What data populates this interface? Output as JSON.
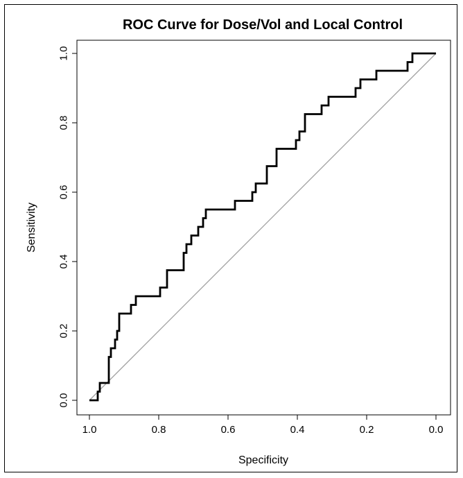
{
  "chart_data": {
    "type": "line",
    "title": "ROC Curve for Dose/Vol and Local Control",
    "xlabel": "Specificity",
    "ylabel": "Sensitivity",
    "x_reversed": true,
    "xlim": [
      1.0,
      0.0
    ],
    "ylim": [
      0.0,
      1.0
    ],
    "x_ticks": [
      "1.0",
      "0.8",
      "0.6",
      "0.4",
      "0.2",
      "0.0"
    ],
    "y_ticks": [
      "0.0",
      "0.2",
      "0.4",
      "0.6",
      "0.8",
      "1.0"
    ],
    "grid": false,
    "series": [
      {
        "style": "step",
        "color": "#000000",
        "x": [
          1.0,
          0.976,
          0.976,
          0.97,
          0.97,
          0.952,
          0.952,
          0.944,
          0.944,
          0.938,
          0.938,
          0.926,
          0.926,
          0.92,
          0.92,
          0.914,
          0.914,
          0.88,
          0.88,
          0.866,
          0.866,
          0.796,
          0.796,
          0.776,
          0.776,
          0.728,
          0.728,
          0.72,
          0.72,
          0.706,
          0.706,
          0.686,
          0.686,
          0.672,
          0.672,
          0.664,
          0.664,
          0.648,
          0.648,
          0.58,
          0.58,
          0.53,
          0.53,
          0.52,
          0.52,
          0.488,
          0.488,
          0.46,
          0.46,
          0.404,
          0.404,
          0.394,
          0.394,
          0.378,
          0.378,
          0.33,
          0.33,
          0.31,
          0.31,
          0.232,
          0.232,
          0.218,
          0.218,
          0.172,
          0.172,
          0.082,
          0.082,
          0.068,
          0.068,
          0.0
        ],
        "y": [
          0.0,
          0.0,
          0.025,
          0.025,
          0.05,
          0.05,
          0.05,
          0.05,
          0.125,
          0.125,
          0.15,
          0.15,
          0.175,
          0.175,
          0.2,
          0.2,
          0.25,
          0.25,
          0.275,
          0.275,
          0.3,
          0.3,
          0.325,
          0.325,
          0.375,
          0.375,
          0.425,
          0.425,
          0.45,
          0.45,
          0.475,
          0.475,
          0.5,
          0.5,
          0.525,
          0.525,
          0.55,
          0.55,
          0.55,
          0.55,
          0.575,
          0.575,
          0.6,
          0.6,
          0.625,
          0.625,
          0.675,
          0.675,
          0.725,
          0.725,
          0.75,
          0.75,
          0.775,
          0.775,
          0.825,
          0.825,
          0.85,
          0.85,
          0.875,
          0.875,
          0.9,
          0.9,
          0.925,
          0.925,
          0.95,
          0.95,
          0.975,
          0.975,
          1.0,
          1.0
        ]
      },
      {
        "style": "diagonal-reference",
        "color": "#a0a0a0",
        "x": [
          1.0,
          0.0
        ],
        "y": [
          0.0,
          1.0
        ]
      }
    ]
  }
}
